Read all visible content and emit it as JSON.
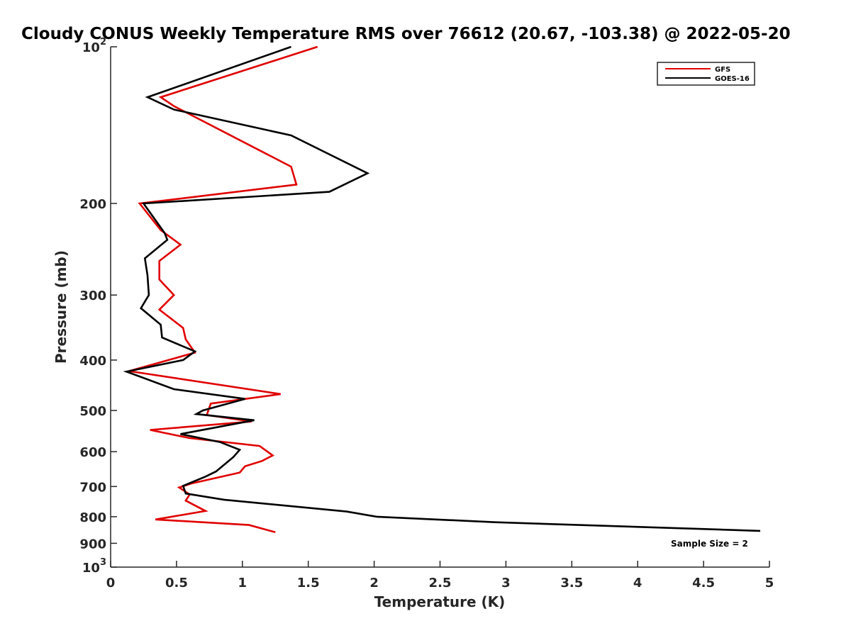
{
  "chart_data": {
    "type": "line",
    "orientation": "vertical-profile",
    "title": "Cloudy CONUS Weekly Temperature RMS over 76612 (20.67, -103.38) @ 2022-05-20",
    "xlabel": "Temperature (K)",
    "ylabel": "Pressure (mb)",
    "xlim": [
      0,
      5
    ],
    "ylim": [
      100,
      1000
    ],
    "y_scale": "log",
    "y_reversed": true,
    "x_ticks": [
      0,
      0.5,
      1,
      1.5,
      2,
      2.5,
      3,
      3.5,
      4,
      4.5,
      5
    ],
    "x_tick_labels": [
      "0",
      "0.5",
      "1",
      "1.5",
      "2",
      "2.5",
      "3",
      "3.5",
      "4",
      "4.5",
      "5"
    ],
    "y_ticks": [
      100,
      200,
      300,
      400,
      500,
      600,
      700,
      800,
      900,
      1000
    ],
    "y_tick_labels": [
      {
        "base": "10",
        "exp": "2"
      },
      {
        "base": "200",
        "exp": ""
      },
      {
        "base": "300",
        "exp": ""
      },
      {
        "base": "400",
        "exp": ""
      },
      {
        "base": "500",
        "exp": ""
      },
      {
        "base": "600",
        "exp": ""
      },
      {
        "base": "700",
        "exp": ""
      },
      {
        "base": "800",
        "exp": ""
      },
      {
        "base": "900",
        "exp": ""
      },
      {
        "base": "10",
        "exp": "3"
      }
    ],
    "legend_position": "top-right",
    "series": [
      {
        "name": "GFS",
        "color": "#e00000",
        "points": [
          [
            1.57,
            100
          ],
          [
            0.38,
            125
          ],
          [
            0.48,
            130
          ],
          [
            1.37,
            170
          ],
          [
            1.41,
            184
          ],
          [
            0.22,
            200
          ],
          [
            0.38,
            225
          ],
          [
            0.53,
            240
          ],
          [
            0.37,
            258
          ],
          [
            0.37,
            280
          ],
          [
            0.48,
            300
          ],
          [
            0.37,
            320
          ],
          [
            0.55,
            347
          ],
          [
            0.57,
            365
          ],
          [
            0.64,
            387
          ],
          [
            0.14,
            420
          ],
          [
            1.29,
            465
          ],
          [
            0.76,
            485
          ],
          [
            0.73,
            510
          ],
          [
            1.07,
            525
          ],
          [
            0.3,
            545
          ],
          [
            0.6,
            565
          ],
          [
            1.13,
            585
          ],
          [
            1.23,
            610
          ],
          [
            1.15,
            625
          ],
          [
            1.02,
            640
          ],
          [
            0.98,
            658
          ],
          [
            0.62,
            690
          ],
          [
            0.52,
            703
          ],
          [
            0.6,
            725
          ],
          [
            0.57,
            745
          ],
          [
            0.72,
            780
          ],
          [
            0.34,
            810
          ],
          [
            1.05,
            830
          ],
          [
            1.25,
            857
          ]
        ]
      },
      {
        "name": "GOES-16",
        "color": "#000000",
        "points": [
          [
            1.37,
            100
          ],
          [
            0.28,
            125
          ],
          [
            0.48,
            132
          ],
          [
            1.37,
            148
          ],
          [
            1.95,
            175
          ],
          [
            1.66,
            190
          ],
          [
            0.25,
            200
          ],
          [
            0.41,
            228
          ],
          [
            0.43,
            235
          ],
          [
            0.26,
            255
          ],
          [
            0.28,
            275
          ],
          [
            0.29,
            300
          ],
          [
            0.23,
            318
          ],
          [
            0.38,
            342
          ],
          [
            0.39,
            362
          ],
          [
            0.64,
            385
          ],
          [
            0.55,
            400
          ],
          [
            0.12,
            421
          ],
          [
            0.48,
            455
          ],
          [
            1.02,
            475
          ],
          [
            0.7,
            500
          ],
          [
            0.65,
            508
          ],
          [
            1.09,
            522
          ],
          [
            0.53,
            555
          ],
          [
            0.83,
            575
          ],
          [
            0.98,
            595
          ],
          [
            0.93,
            615
          ],
          [
            0.8,
            655
          ],
          [
            0.72,
            670
          ],
          [
            0.55,
            698
          ],
          [
            0.57,
            722
          ],
          [
            0.86,
            742
          ],
          [
            1.79,
            782
          ],
          [
            2.02,
            800
          ],
          [
            2.92,
            820
          ],
          [
            4.93,
            852
          ]
        ]
      }
    ],
    "annotation": "Sample Size = 2"
  }
}
